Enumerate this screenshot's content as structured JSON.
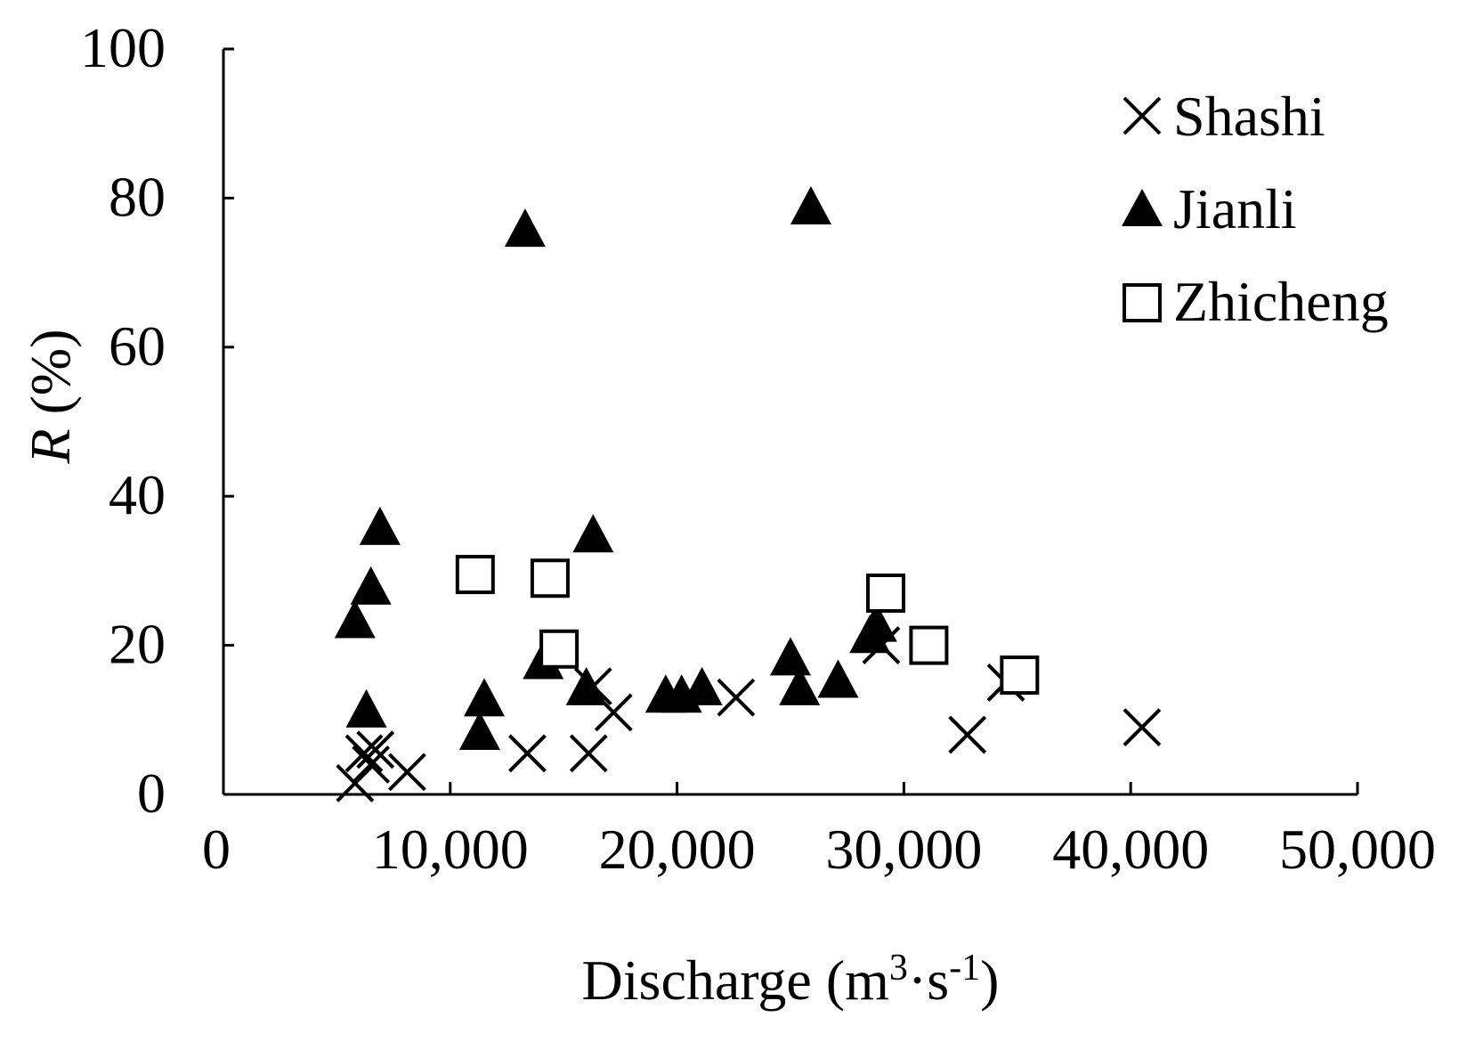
{
  "chart_data": {
    "type": "scatter",
    "title": "",
    "xlabel": "Discharge (m",
    "xlabel_sup1": "3",
    "xlabel_mid": "·s",
    "xlabel_sup2": "-1",
    "xlabel_end": ")",
    "ylabel_italic": "R",
    "ylabel_rest": " (%)",
    "xlim": [
      0,
      50000
    ],
    "ylim": [
      0,
      100
    ],
    "xticks": [
      0,
      10000,
      20000,
      30000,
      40000,
      50000
    ],
    "xtick_labels": [
      "0",
      "10,000",
      "20,000",
      "30,000",
      "40,000",
      "50,000"
    ],
    "yticks": [
      0,
      20,
      40,
      60,
      80,
      100
    ],
    "ytick_labels": [
      "0",
      "20",
      "40",
      "60",
      "80",
      "100"
    ],
    "legend_position": "top-right",
    "series": [
      {
        "name": "Shashi",
        "marker": "x",
        "points": [
          [
            5800,
            1.5
          ],
          [
            6200,
            5.5
          ],
          [
            6700,
            6
          ],
          [
            6500,
            4
          ],
          [
            8100,
            3
          ],
          [
            13400,
            5.5
          ],
          [
            16100,
            5.5
          ],
          [
            16300,
            14.5
          ],
          [
            17200,
            11
          ],
          [
            22600,
            13
          ],
          [
            29000,
            20
          ],
          [
            32800,
            8
          ],
          [
            34500,
            15
          ],
          [
            40500,
            9
          ]
        ]
      },
      {
        "name": "Jianli",
        "marker": "triangle",
        "points": [
          [
            5800,
            23
          ],
          [
            6300,
            11
          ],
          [
            6500,
            27.5
          ],
          [
            6900,
            35.5
          ],
          [
            11300,
            8
          ],
          [
            11500,
            12.5
          ],
          [
            13300,
            75.5
          ],
          [
            14100,
            17.5
          ],
          [
            16000,
            14
          ],
          [
            16300,
            34.5
          ],
          [
            19500,
            13
          ],
          [
            20200,
            13
          ],
          [
            21100,
            14
          ],
          [
            25000,
            18
          ],
          [
            25400,
            14
          ],
          [
            25900,
            78.5
          ],
          [
            27100,
            15
          ],
          [
            28500,
            21
          ],
          [
            28800,
            22.5
          ]
        ]
      },
      {
        "name": "Zhicheng",
        "marker": "square",
        "points": [
          [
            11100,
            29.5
          ],
          [
            14400,
            29
          ],
          [
            14800,
            19.5
          ],
          [
            29200,
            27
          ],
          [
            31100,
            20
          ],
          [
            35100,
            16
          ]
        ]
      }
    ]
  }
}
